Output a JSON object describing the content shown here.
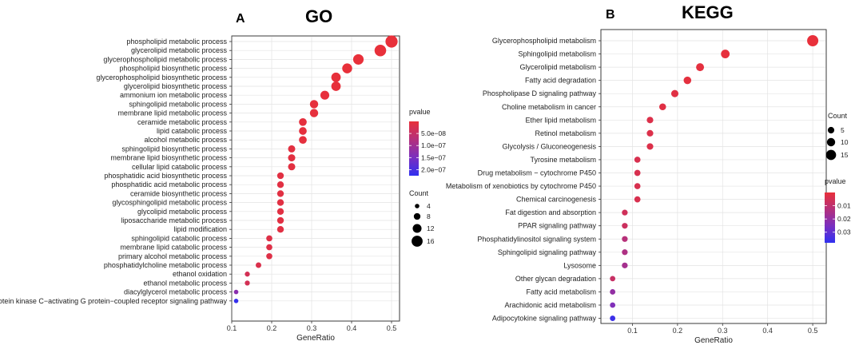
{
  "chart_data": [
    {
      "type": "scatter",
      "panel_letter": "A",
      "title": "GO",
      "xlabel": "GeneRatio",
      "ylabel": "",
      "xlim": [
        0.1,
        0.52
      ],
      "xticks": [
        0.1,
        0.2,
        0.3,
        0.4,
        0.5
      ],
      "xtick_labels": [
        "0.1",
        "0.2",
        "0.3",
        "0.4",
        "0.5"
      ],
      "grid": true,
      "color_legend": {
        "title": "pvalue",
        "ticks": [
          "5.0e−08",
          "1.0e−07",
          "1.5e−07",
          "2.0e−07"
        ],
        "colors": [
          "#e8303a",
          "#b4307c",
          "#7a2fc0",
          "#3030f0"
        ]
      },
      "size_legend": {
        "title": "Count",
        "ticks": [
          "4",
          "8",
          "12",
          "16"
        ]
      },
      "categories": [
        "phospholipid metabolic process",
        "glycerolipid metabolic process",
        "glycerophospholipid metabolic process",
        "phospholipid biosynthetic process",
        "glycerophospholipid biosynthetic process",
        "glycerolipid biosynthetic process",
        "ammonium ion metabolic process",
        "sphingolipid metabolic process",
        "membrane lipid metabolic process",
        "ceramide metabolic process",
        "lipid catabolic process",
        "alcohol metabolic process",
        "sphingolipid biosynthetic process",
        "membrane lipid biosynthetic process",
        "cellular lipid catabolic process",
        "phosphatidic acid biosynthetic process",
        "phosphatidic acid metabolic process",
        "ceramide biosynthetic process",
        "glycosphingolipid metabolic process",
        "glycolipid metabolic process",
        "liposaccharide metabolic process",
        "lipid modification",
        "sphingolipid catabolic process",
        "membrane lipid catabolic process",
        "primary alcohol metabolic process",
        "phosphatidylcholine metabolic process",
        "ethanol oxidation",
        "ethanol metabolic process",
        "diacylglycerol metabolic process",
        "protein kinase C−activating G protein−coupled receptor signaling pathway"
      ],
      "x": [
        0.5,
        0.472,
        0.417,
        0.389,
        0.361,
        0.361,
        0.333,
        0.306,
        0.306,
        0.278,
        0.278,
        0.278,
        0.25,
        0.25,
        0.25,
        0.222,
        0.222,
        0.222,
        0.222,
        0.222,
        0.222,
        0.222,
        0.194,
        0.194,
        0.194,
        0.167,
        0.139,
        0.139,
        0.111,
        0.111
      ],
      "count": [
        18,
        17,
        15,
        14,
        13,
        13,
        12,
        11,
        11,
        10,
        10,
        10,
        9,
        9,
        9,
        8,
        8,
        8,
        8,
        8,
        8,
        8,
        7,
        7,
        7,
        6,
        5,
        5,
        4,
        4
      ],
      "pvalue": [
        1e-10,
        2e-10,
        3e-10,
        5e-10,
        1e-09,
        1e-09,
        2e-09,
        3e-09,
        3e-09,
        5e-09,
        5e-09,
        5e-09,
        8e-09,
        8e-09,
        8e-09,
        1e-08,
        1e-08,
        1e-08,
        1e-08,
        1e-08,
        1e-08,
        1e-08,
        1.5e-08,
        1.5e-08,
        1.5e-08,
        2e-08,
        3e-08,
        3e-08,
        1.3e-07,
        2.2e-07
      ]
    },
    {
      "type": "scatter",
      "panel_letter": "B",
      "title": "KEGG",
      "xlabel": "GeneRatio",
      "ylabel": "",
      "xlim": [
        0.03,
        0.53
      ],
      "xticks": [
        0.1,
        0.2,
        0.3,
        0.4,
        0.5
      ],
      "xtick_labels": [
        "0.1",
        "0.2",
        "0.3",
        "0.4",
        "0.5"
      ],
      "grid": true,
      "size_legend": {
        "title": "Count",
        "ticks": [
          "5",
          "10",
          "15"
        ]
      },
      "color_legend": {
        "title": "pvalue",
        "ticks": [
          "0.01",
          "0.02",
          "0.03"
        ],
        "colors": [
          "#e8303a",
          "#b4307c",
          "#7a2fc0",
          "#3030f0"
        ]
      },
      "categories": [
        "Glycerophospholipid metabolism",
        "Sphingolipid metabolism",
        "Glycerolipid metabolism",
        "Fatty acid degradation",
        "Phospholipase D signaling pathway",
        "Choline metabolism in cancer",
        "Ether lipid metabolism",
        "Retinol metabolism",
        "Glycolysis / Gluconeogenesis",
        "Tyrosine metabolism",
        "Drug metabolism − cytochrome P450",
        "Metabolism of xenobiotics by cytochrome P450",
        "Chemical carcinogenesis",
        "Fat digestion and absorption",
        "PPAR signaling pathway",
        "Phosphatidylinositol signaling system",
        "Sphingolipid signaling pathway",
        "Lysosome",
        "Other glycan degradation",
        "Fatty acid metabolism",
        "Arachidonic acid metabolism",
        "Adipocytokine signaling pathway"
      ],
      "x": [
        0.5,
        0.306,
        0.25,
        0.222,
        0.194,
        0.167,
        0.139,
        0.139,
        0.139,
        0.111,
        0.111,
        0.111,
        0.111,
        0.083,
        0.083,
        0.083,
        0.083,
        0.083,
        0.056,
        0.056,
        0.056,
        0.056
      ],
      "count": [
        18,
        11,
        9,
        8,
        7,
        6,
        5,
        5,
        5,
        4,
        4,
        4,
        4,
        3,
        3,
        3,
        3,
        3,
        2,
        2,
        2,
        2
      ],
      "pvalue": [
        0.0001,
        0.0005,
        0.001,
        0.001,
        0.002,
        0.002,
        0.003,
        0.003,
        0.003,
        0.004,
        0.004,
        0.004,
        0.004,
        0.006,
        0.007,
        0.012,
        0.014,
        0.016,
        0.008,
        0.02,
        0.024,
        0.036
      ]
    }
  ]
}
